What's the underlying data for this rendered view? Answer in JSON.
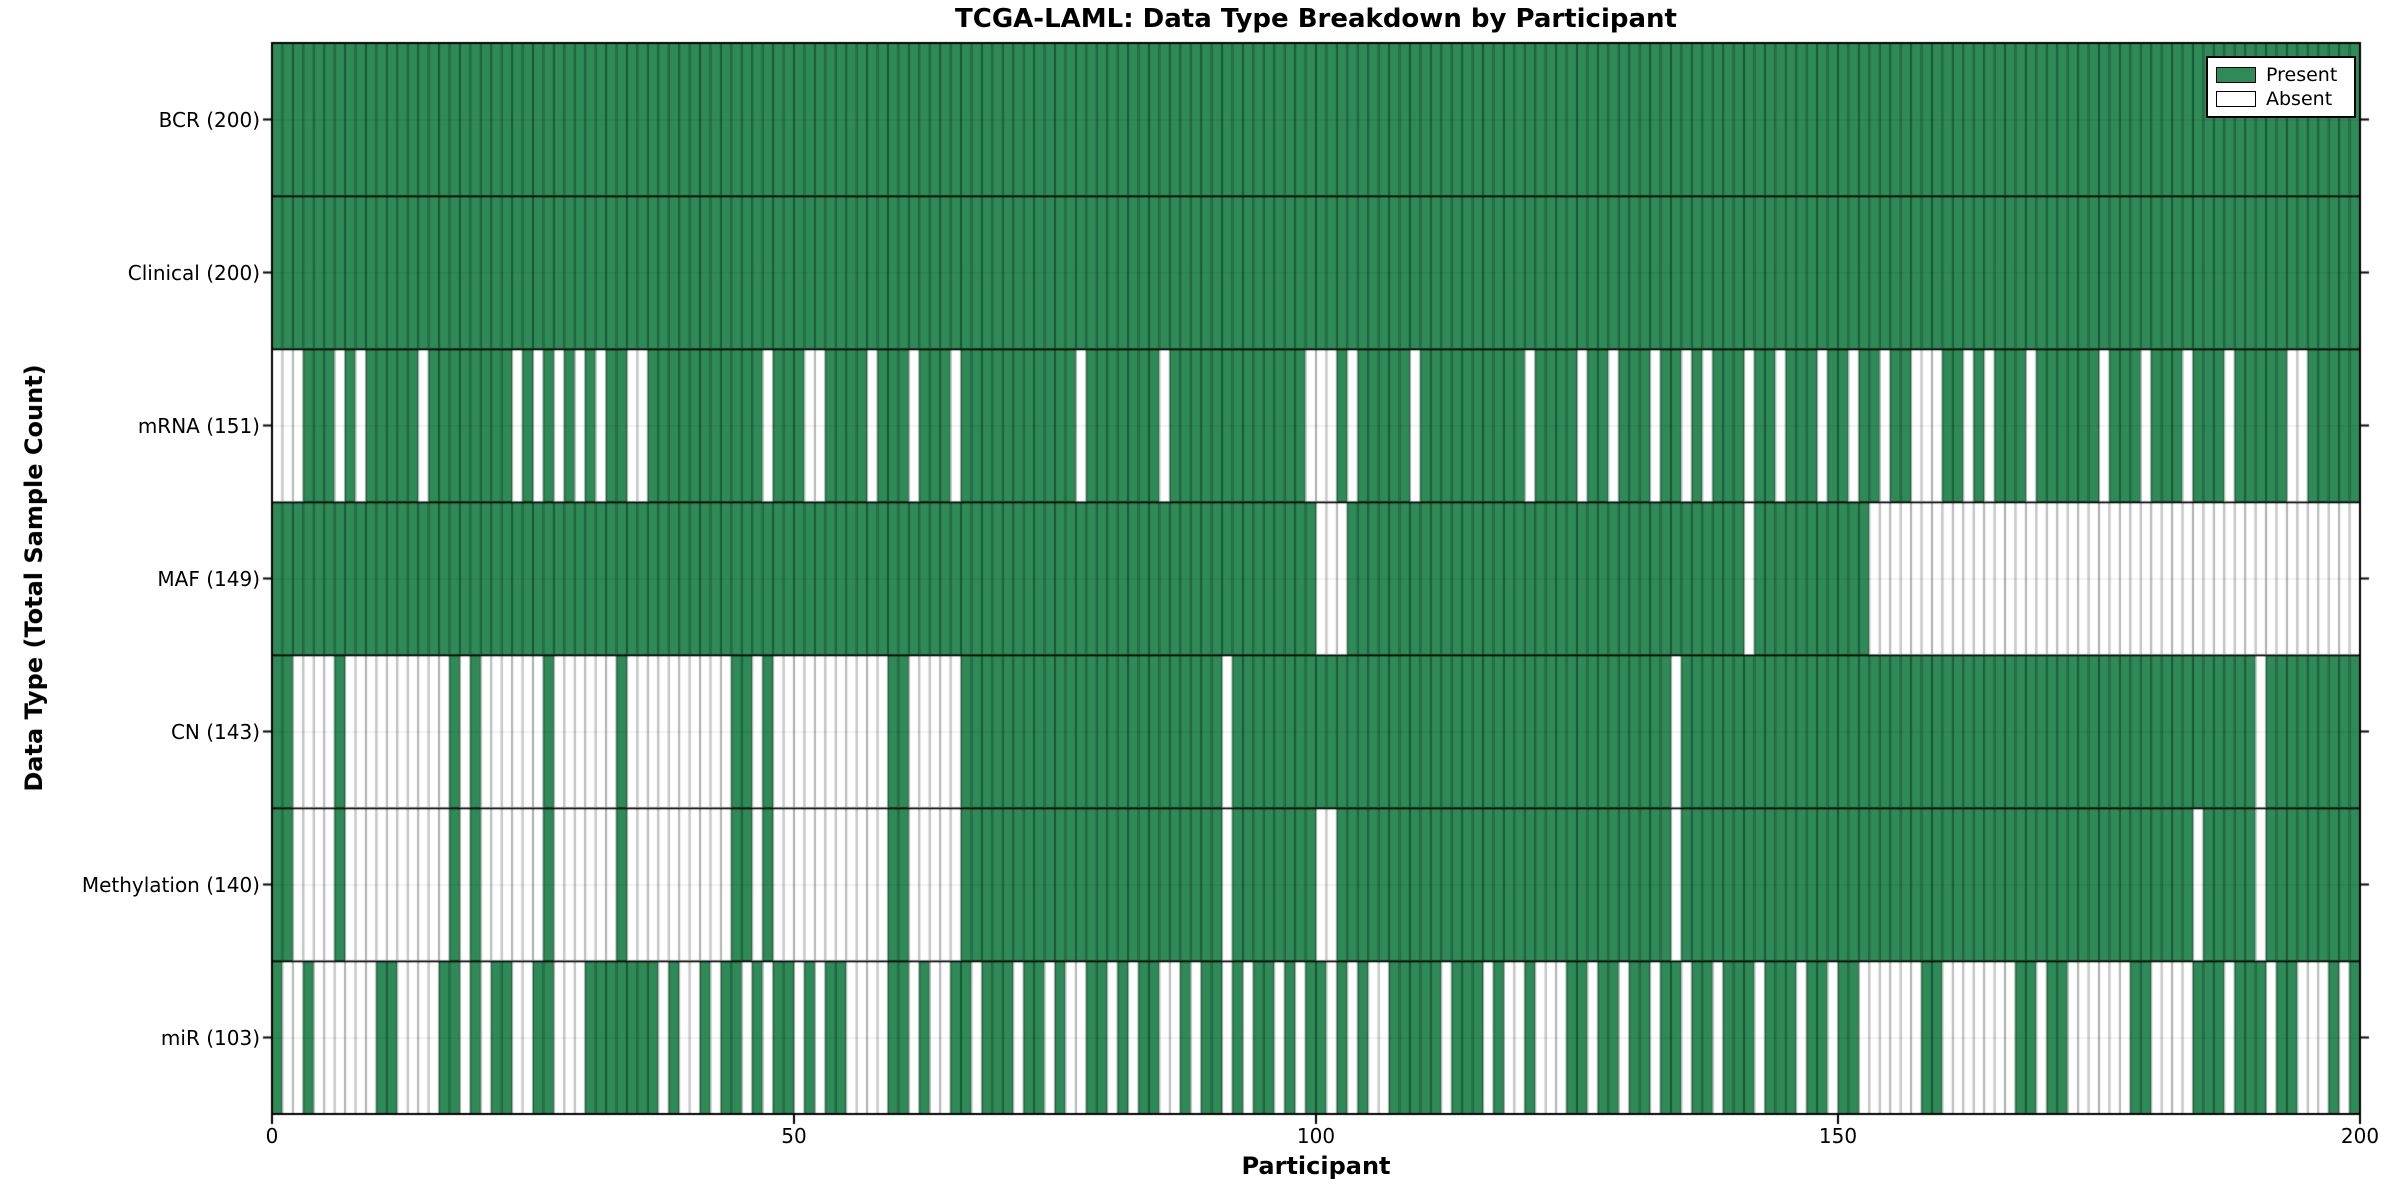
{
  "title": "TCGA-LAML: Data Type Breakdown by Participant",
  "xlabel": "Participant",
  "ylabel": "Data Type (Total Sample Count)",
  "legend": {
    "present_label": "Present",
    "absent_label": "Absent"
  },
  "colors": {
    "present": "#2E8B57",
    "absent": "#FFFFFF",
    "present_border": "#1C5435",
    "absent_border": "#ABABAB",
    "row_separator": "#000000",
    "plot_border": "#000000",
    "center_gridline": "#C8C8C8"
  },
  "chart_data": {
    "type": "heatmap",
    "x_axis": {
      "label": "Participant",
      "range": [
        0,
        200
      ],
      "ticks": [
        0,
        50,
        100,
        150,
        200
      ]
    },
    "n_participants": 200,
    "cell_states": [
      "Present",
      "Absent"
    ],
    "rows": [
      {
        "label": "BCR (200)",
        "present_count": 200,
        "absent_ranges": []
      },
      {
        "label": "Clinical (200)",
        "present_count": 200,
        "absent_ranges": []
      },
      {
        "label": "mRNA (151)",
        "present_count": 151,
        "absent_ranges": [
          [
            0,
            2
          ],
          6,
          8,
          14,
          23,
          25,
          27,
          29,
          31,
          [
            34,
            35
          ],
          47,
          [
            51,
            52
          ],
          57,
          61,
          65,
          77,
          85,
          [
            99,
            101
          ],
          103,
          109,
          120,
          125,
          128,
          132,
          135,
          137,
          141,
          144,
          148,
          151,
          154,
          [
            157,
            159
          ],
          162,
          164,
          168,
          175,
          179,
          183,
          187,
          [
            193,
            194
          ]
        ]
      },
      {
        "label": "MAF (149)",
        "present_count": 149,
        "absent_ranges": [
          [
            100,
            102
          ],
          141,
          [
            153,
            199
          ]
        ]
      },
      {
        "label": "CN (143)",
        "present_count": 143,
        "absent_ranges": [
          [
            2,
            5
          ],
          [
            7,
            16
          ],
          18,
          [
            20,
            25
          ],
          [
            27,
            32
          ],
          [
            34,
            43
          ],
          46,
          [
            48,
            58
          ],
          [
            61,
            65
          ],
          91,
          134,
          190
        ]
      },
      {
        "label": "Methylation (140)",
        "present_count": 140,
        "absent_ranges": [
          [
            2,
            5
          ],
          [
            7,
            16
          ],
          18,
          [
            20,
            25
          ],
          [
            27,
            32
          ],
          [
            34,
            43
          ],
          46,
          [
            48,
            58
          ],
          [
            61,
            65
          ],
          91,
          [
            100,
            101
          ],
          134,
          184,
          190
        ]
      },
      {
        "label": "miR (103)",
        "present_count": 103,
        "absent_ranges": [
          [
            1,
            2
          ],
          [
            4,
            9
          ],
          [
            12,
            15
          ],
          18,
          20,
          [
            23,
            24
          ],
          [
            27,
            29
          ],
          37,
          [
            39,
            40
          ],
          42,
          45,
          47,
          50,
          52,
          [
            55,
            58
          ],
          61,
          [
            63,
            64
          ],
          67,
          71,
          74,
          [
            76,
            77
          ],
          80,
          82,
          [
            85,
            86
          ],
          88,
          91,
          93,
          96,
          98,
          101,
          103,
          [
            105,
            106
          ],
          112,
          116,
          [
            118,
            119
          ],
          [
            121,
            123
          ],
          126,
          129,
          132,
          135,
          138,
          142,
          146,
          149,
          [
            152,
            157
          ],
          [
            160,
            166
          ],
          169,
          [
            172,
            177
          ],
          [
            180,
            183
          ],
          187,
          191,
          [
            194,
            196
          ],
          198
        ]
      }
    ]
  }
}
